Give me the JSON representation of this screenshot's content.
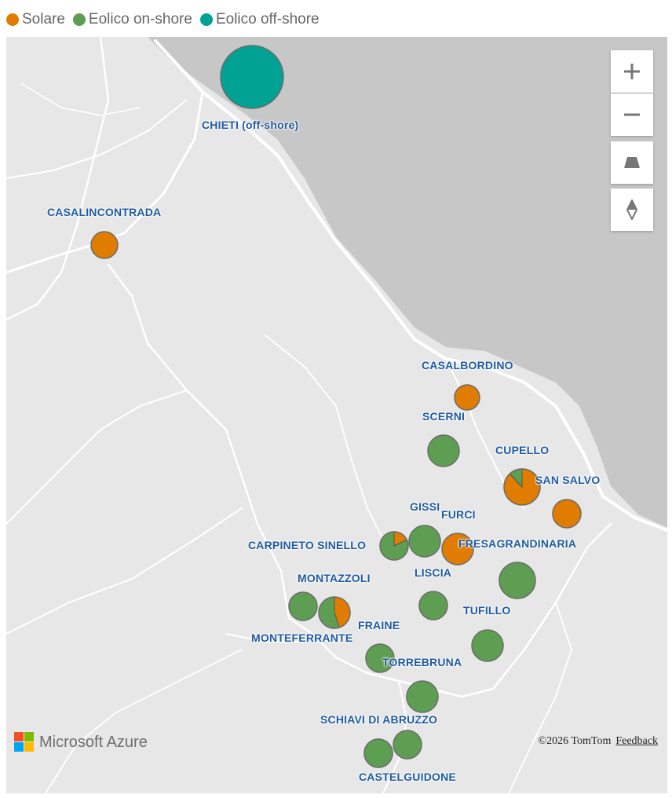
{
  "legend": [
    {
      "label": "Solare",
      "color": "#e07c00"
    },
    {
      "label": "Eolico on-shore",
      "color": "#5e9e52"
    },
    {
      "label": "Eolico off-shore",
      "color": "#00a393"
    }
  ],
  "colors": {
    "solare": "#e07c00",
    "onshore": "#5e9e52",
    "offshore": "#00a393",
    "label": "#1f5aa0"
  },
  "places": [
    {
      "name": "CHIETI (off-shore)",
      "solare": 0,
      "onshore": 0,
      "offshore": 1
    },
    {
      "name": "CASALINCONTRADA",
      "solare": 1,
      "onshore": 0,
      "offshore": 0
    },
    {
      "name": "CASALBORDINO",
      "solare": 1,
      "onshore": 0,
      "offshore": 0
    },
    {
      "name": "SCERNI",
      "solare": 0,
      "onshore": 1,
      "offshore": 0
    },
    {
      "name": "CUPELLO",
      "solare": 0.88,
      "onshore": 0.12,
      "offshore": 0
    },
    {
      "name": "SAN SALVO",
      "solare": 1,
      "onshore": 0,
      "offshore": 0
    },
    {
      "name": "GISSI",
      "solare": 0,
      "onshore": 1,
      "offshore": 0
    },
    {
      "name": "FURCI",
      "solare": 1,
      "onshore": 0,
      "offshore": 0
    },
    {
      "name": "CARPINETO SINELLO",
      "solare": 0.18,
      "onshore": 0.82,
      "offshore": 0
    },
    {
      "name": "FRESAGRANDINARIA",
      "solare": 0,
      "onshore": 1,
      "offshore": 0
    },
    {
      "name": "LISCIA",
      "solare": 0,
      "onshore": 1,
      "offshore": 0
    },
    {
      "name": "MONTAZZOLI",
      "solare": 0,
      "onshore": 1,
      "offshore": 0
    },
    {
      "name": "MONTEFERRANTE",
      "solare": 0.45,
      "onshore": 0.55,
      "offshore": 0
    },
    {
      "name": "TUFILLO",
      "solare": 0,
      "onshore": 1,
      "offshore": 0
    },
    {
      "name": "FRAINE",
      "solare": 0,
      "onshore": 1,
      "offshore": 0
    },
    {
      "name": "TORREBRUNA",
      "solare": 0,
      "onshore": 1,
      "offshore": 0
    },
    {
      "name": "SCHIAVI DI ABRUZZO",
      "solare": 0,
      "onshore": 1,
      "offshore": 0
    },
    {
      "name": "CASTELGUIDONE A",
      "solare": 0,
      "onshore": 1,
      "offshore": 0
    },
    {
      "name": "CASTELGUIDONE",
      "solare": 0,
      "onshore": 1,
      "offshore": 0
    }
  ],
  "branding": {
    "logo_text": "Microsoft Azure"
  },
  "attribution": {
    "copyright": "©2026 TomTom",
    "feedback": "Feedback"
  }
}
